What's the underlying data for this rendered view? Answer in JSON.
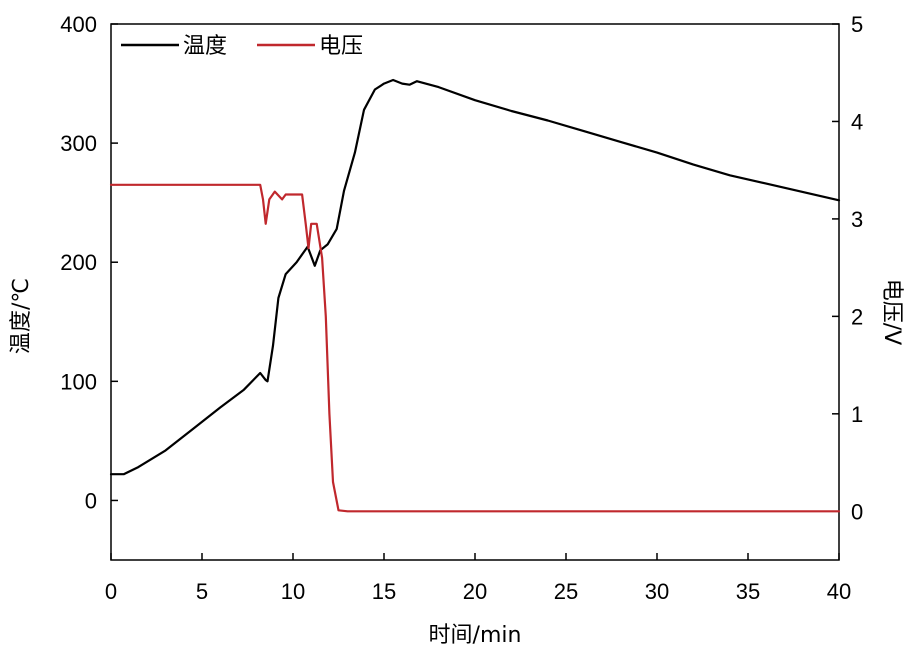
{
  "chart_data": {
    "type": "line",
    "title": "",
    "xlabel": "时间/min",
    "ylabel_left": "温度/℃",
    "ylabel_right": "电压/V",
    "xlim": [
      0,
      40
    ],
    "ylim_left": [
      -50,
      400
    ],
    "ylim_right": [
      -0.5,
      5
    ],
    "x_ticks": [
      0,
      5,
      10,
      15,
      20,
      25,
      30,
      35,
      40
    ],
    "y_ticks_left": [
      0,
      100,
      200,
      300,
      400
    ],
    "y_ticks_right": [
      0,
      1,
      2,
      3,
      4,
      5
    ],
    "grid": false,
    "legend_position": "top-left",
    "series": [
      {
        "name": "温度",
        "axis": "left",
        "color": "#000000",
        "points": [
          [
            0,
            22
          ],
          [
            0.7,
            22
          ],
          [
            1.5,
            28
          ],
          [
            3,
            42
          ],
          [
            4.5,
            60
          ],
          [
            6,
            78
          ],
          [
            7.3,
            93
          ],
          [
            8.2,
            107
          ],
          [
            8.5,
            101
          ],
          [
            8.6,
            100
          ],
          [
            8.9,
            130
          ],
          [
            9.2,
            170
          ],
          [
            9.6,
            190
          ],
          [
            10.2,
            200
          ],
          [
            10.8,
            213
          ],
          [
            11.2,
            197
          ],
          [
            11.5,
            210
          ],
          [
            11.9,
            215
          ],
          [
            12.4,
            228
          ],
          [
            12.8,
            260
          ],
          [
            13.4,
            292
          ],
          [
            13.9,
            328
          ],
          [
            14.5,
            345
          ],
          [
            15,
            350
          ],
          [
            15.5,
            353
          ],
          [
            16,
            350
          ],
          [
            16.4,
            349
          ],
          [
            16.8,
            352
          ],
          [
            18,
            347
          ],
          [
            20,
            336
          ],
          [
            22,
            327
          ],
          [
            24,
            319
          ],
          [
            26,
            310
          ],
          [
            28,
            301
          ],
          [
            30,
            292
          ],
          [
            32,
            282
          ],
          [
            34,
            273
          ],
          [
            36,
            266
          ],
          [
            38,
            259
          ],
          [
            40,
            252
          ]
        ]
      },
      {
        "name": "电压",
        "axis": "right",
        "color": "#c0282d",
        "points": [
          [
            0,
            3.35
          ],
          [
            8.2,
            3.35
          ],
          [
            8.35,
            3.2
          ],
          [
            8.5,
            2.95
          ],
          [
            8.7,
            3.2
          ],
          [
            9.0,
            3.28
          ],
          [
            9.4,
            3.2
          ],
          [
            9.6,
            3.25
          ],
          [
            10.5,
            3.25
          ],
          [
            10.7,
            2.95
          ],
          [
            10.85,
            2.7
          ],
          [
            11.0,
            2.95
          ],
          [
            11.3,
            2.95
          ],
          [
            11.6,
            2.6
          ],
          [
            11.8,
            2.0
          ],
          [
            12.0,
            1.0
          ],
          [
            12.2,
            0.3
          ],
          [
            12.5,
            0.01
          ],
          [
            13,
            0.0
          ],
          [
            40,
            0.0
          ]
        ]
      }
    ]
  }
}
